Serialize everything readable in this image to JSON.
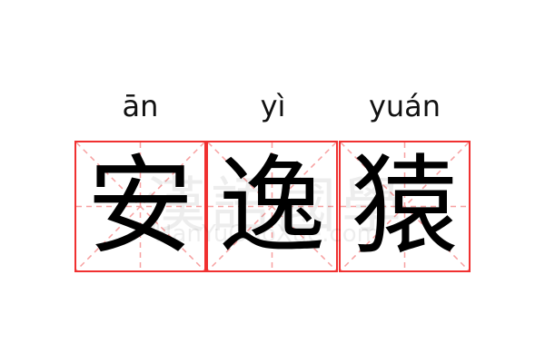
{
  "pinyin": [
    "ān",
    "yì",
    "yuán"
  ],
  "characters": [
    "安",
    "逸",
    "猿"
  ],
  "watermark": {
    "chinese": "漢語國學",
    "latin": "HanYuGuoXue.com"
  },
  "colors": {
    "border": "#f03030",
    "guide": "#f7a0a0",
    "text": "#000000"
  }
}
